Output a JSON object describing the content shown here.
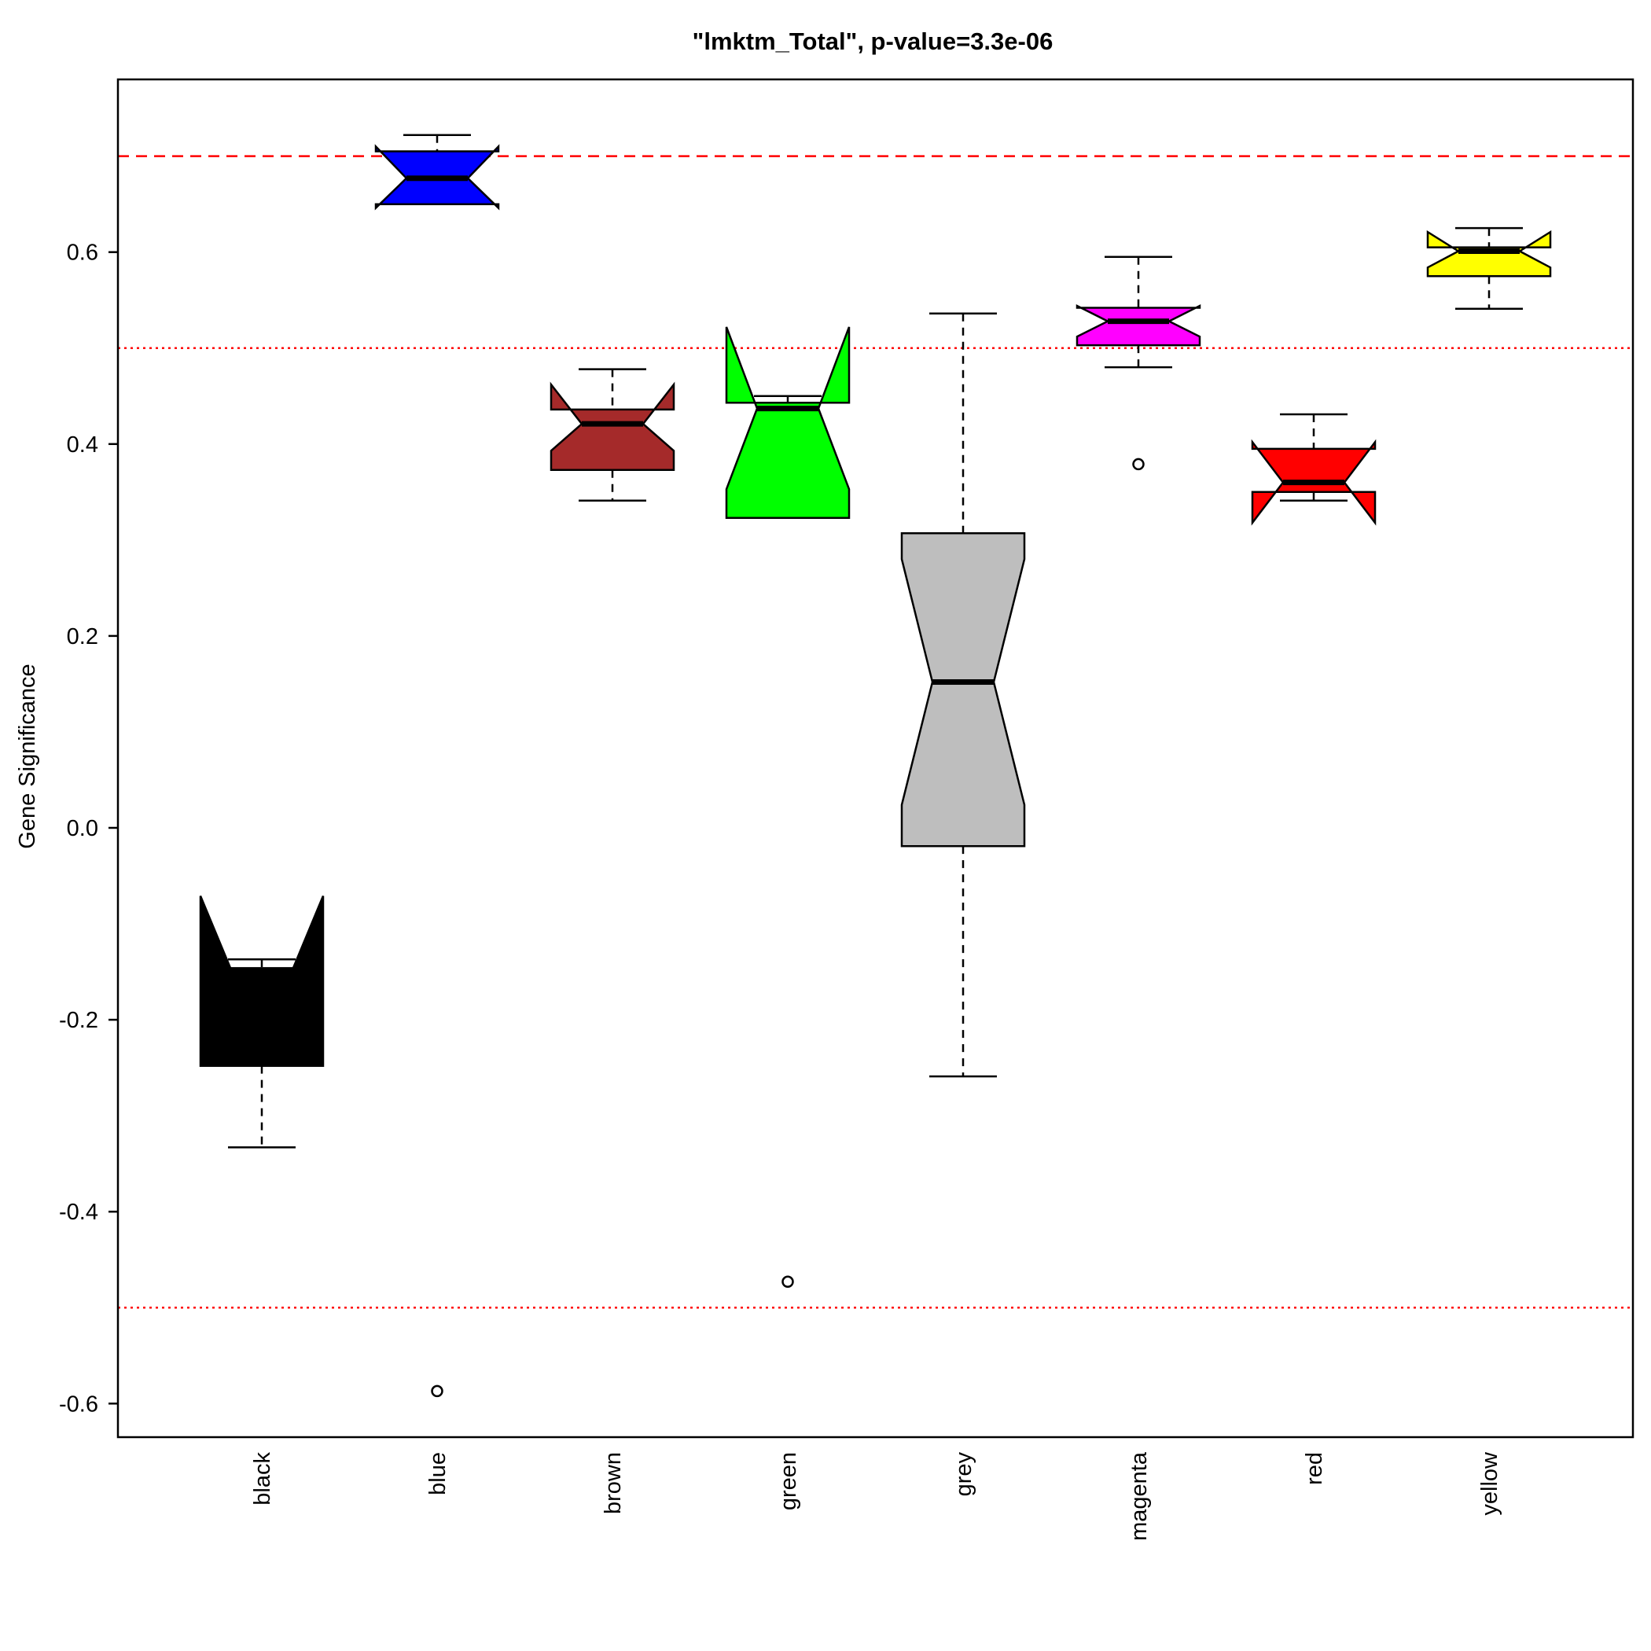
{
  "chart_data": {
    "type": "boxplot",
    "title": "\"lmktm_Total\", p-value=3.3e-06",
    "ylabel": "Gene Significance",
    "xlabel": "",
    "ylim": [
      -0.635,
      0.78
    ],
    "yticks": [
      -0.6,
      -0.4,
      -0.2,
      0.0,
      0.2,
      0.4,
      0.6
    ],
    "ytick_labels": [
      "-0.6",
      "-0.4",
      "-0.2",
      "0.0",
      "0.2",
      "0.4",
      "0.6"
    ],
    "notched": true,
    "grid": false,
    "legend": "none",
    "reference_lines": [
      {
        "value": 0.7,
        "style": "dashed",
        "color": "#ff0000"
      },
      {
        "value": 0.5,
        "style": "dotted",
        "color": "#ff0000"
      },
      {
        "value": -0.5,
        "style": "dotted",
        "color": "#ff0000"
      }
    ],
    "categories": [
      "black",
      "blue",
      "brown",
      "green",
      "grey",
      "magenta",
      "red",
      "yellow"
    ],
    "boxes": [
      {
        "category": "black",
        "color": "#000000",
        "whisker_low": -0.333,
        "q1": -0.248,
        "median": -0.148,
        "q3": -0.148,
        "whisker_high": -0.137,
        "notch_low": -0.071,
        "notch_high": -0.248,
        "outliers": []
      },
      {
        "category": "blue",
        "color": "#0000ff",
        "whisker_low": 0.65,
        "q1": 0.65,
        "median": 0.677,
        "q3": 0.705,
        "whisker_high": 0.722,
        "notch_low": 0.646,
        "notch_high": 0.71,
        "outliers": [
          -0.587
        ]
      },
      {
        "category": "brown",
        "color": "#a52a2a",
        "whisker_low": 0.341,
        "q1": 0.373,
        "median": 0.421,
        "q3": 0.436,
        "whisker_high": 0.478,
        "notch_low": 0.393,
        "notch_high": 0.462,
        "outliers": []
      },
      {
        "category": "green",
        "color": "#00ff00",
        "whisker_low": 0.323,
        "q1": 0.323,
        "median": 0.437,
        "q3": 0.443,
        "whisker_high": 0.45,
        "notch_low": 0.353,
        "notch_high": 0.522,
        "outliers": [
          -0.473
        ]
      },
      {
        "category": "grey",
        "color": "#bebebe",
        "whisker_low": -0.259,
        "q1": -0.019,
        "median": 0.152,
        "q3": 0.307,
        "whisker_high": 0.536,
        "notch_low": 0.024,
        "notch_high": 0.28,
        "outliers": []
      },
      {
        "category": "magenta",
        "color": "#ff00ff",
        "whisker_low": 0.48,
        "q1": 0.503,
        "median": 0.528,
        "q3": 0.542,
        "whisker_high": 0.595,
        "notch_low": 0.512,
        "notch_high": 0.544,
        "outliers": [
          0.379
        ]
      },
      {
        "category": "red",
        "color": "#ff0000",
        "whisker_low": 0.341,
        "q1": 0.35,
        "median": 0.36,
        "q3": 0.395,
        "whisker_high": 0.431,
        "notch_low": 0.318,
        "notch_high": 0.402,
        "outliers": []
      },
      {
        "category": "yellow",
        "color": "#ffff00",
        "whisker_low": 0.541,
        "q1": 0.575,
        "median": 0.601,
        "q3": 0.605,
        "whisker_high": 0.625,
        "notch_low": 0.584,
        "notch_high": 0.621,
        "outliers": []
      }
    ]
  }
}
